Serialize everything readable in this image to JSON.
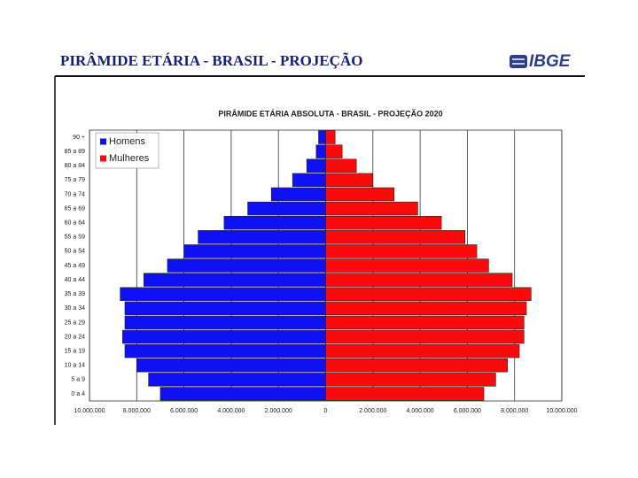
{
  "header": {
    "title": "PIRÂMIDE ETÁRIA - BRASIL - PROJEÇÃO",
    "logo": "IBGE"
  },
  "chart_data": {
    "type": "bar",
    "orientation": "horizontal",
    "title": "PIRÂMIDE ETÁRIA ABSOLUTA - BRASIL - PROJEÇÃO 2020",
    "categories": [
      "90 +",
      "85 a 89",
      "80 a 84",
      "75 a 79",
      "70 a 74",
      "65 a 69",
      "60 a 64",
      "55 a 59",
      "50 a 54",
      "45 a 49",
      "40 a 44",
      "35 a 39",
      "30 a 34",
      "25 a 29",
      "20 a 24",
      "15 a 19",
      "10 a 14",
      "5 a 9",
      "0 a 4"
    ],
    "series": [
      {
        "name": "Homens",
        "color": "#1010f5",
        "values": [
          -300000,
          -400000,
          -800000,
          -1400000,
          -2300000,
          -3300000,
          -4300000,
          -5400000,
          -6000000,
          -6700000,
          -7700000,
          -8700000,
          -8500000,
          -8500000,
          -8600000,
          -8500000,
          -8000000,
          -7500000,
          -7000000
        ]
      },
      {
        "name": "Mulheres",
        "color": "#fa0a0a",
        "values": [
          400000,
          700000,
          1300000,
          2000000,
          2900000,
          3900000,
          4900000,
          5900000,
          6400000,
          6900000,
          7900000,
          8700000,
          8500000,
          8400000,
          8400000,
          8200000,
          7700000,
          7200000,
          6700000
        ]
      }
    ],
    "xlim": [
      -10000000,
      10000000
    ],
    "xticks": [
      {
        "value": -10000000,
        "label": "10.000.000"
      },
      {
        "value": -8000000,
        "label": "8.000.000"
      },
      {
        "value": -6000000,
        "label": "6.000.000"
      },
      {
        "value": -4000000,
        "label": "4.000.000"
      },
      {
        "value": -2000000,
        "label": "2.000.000"
      },
      0,
      {
        "value": 2000000,
        "label": "2.000.000"
      },
      {
        "value": 4000000,
        "label": "4.000.000"
      },
      {
        "value": 6000000,
        "label": "6.000.000"
      },
      {
        "value": 8000000,
        "label": "8.000.000"
      },
      {
        "value": 10000000,
        "label": "10.000.000"
      }
    ],
    "grid": true,
    "legend": "upper left"
  }
}
